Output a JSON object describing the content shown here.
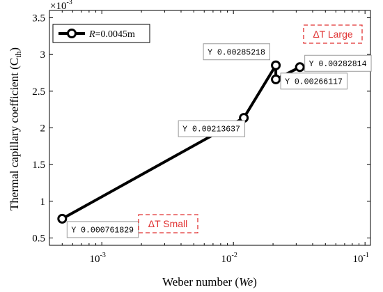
{
  "chart_data": {
    "type": "line",
    "xscale": "log",
    "xlim": [
      0.0004,
      0.11
    ],
    "ylim": [
      0.4,
      3.6
    ],
    "y_multiplier_label": "×10",
    "y_multiplier_exponent": "-3",
    "xlabel": "Weber number (",
    "xlabel_var": "We",
    "xlabel_close": ")",
    "ylabel": "Thermal capillary coefficient (C",
    "ylabel_sub": "th",
    "ylabel_close": ")",
    "x_ticks": [
      0.001,
      0.01,
      0.1
    ],
    "x_tick_labels": [
      {
        "base": "10",
        "exp": "-3"
      },
      {
        "base": "10",
        "exp": "-2"
      },
      {
        "base": "10",
        "exp": "-1"
      }
    ],
    "y_ticks": [
      0.5,
      1,
      1.5,
      2,
      2.5,
      3,
      3.5
    ],
    "y_tick_labels": [
      "0.5",
      "1",
      "1.5",
      "2",
      "2.5",
      "3",
      "3.5"
    ],
    "grid": false,
    "legend_position": "top-left",
    "series": [
      {
        "name_var": "R",
        "name_rest": "=0.0045m",
        "x": [
          0.0005,
          0.012,
          0.021,
          0.021,
          0.032
        ],
        "y": [
          0.761829,
          2.13637,
          2.85218,
          2.66117,
          2.82814
        ]
      }
    ],
    "datatips": [
      {
        "text": "Y 0.000761829"
      },
      {
        "text": "Y 0.00213637"
      },
      {
        "text": "Y 0.00285218"
      },
      {
        "text": "Y 0.00266117"
      },
      {
        "text": "Y 0.00282814"
      }
    ],
    "annotations": [
      {
        "text": "ΔT Large"
      },
      {
        "text": "ΔT Small"
      }
    ]
  }
}
